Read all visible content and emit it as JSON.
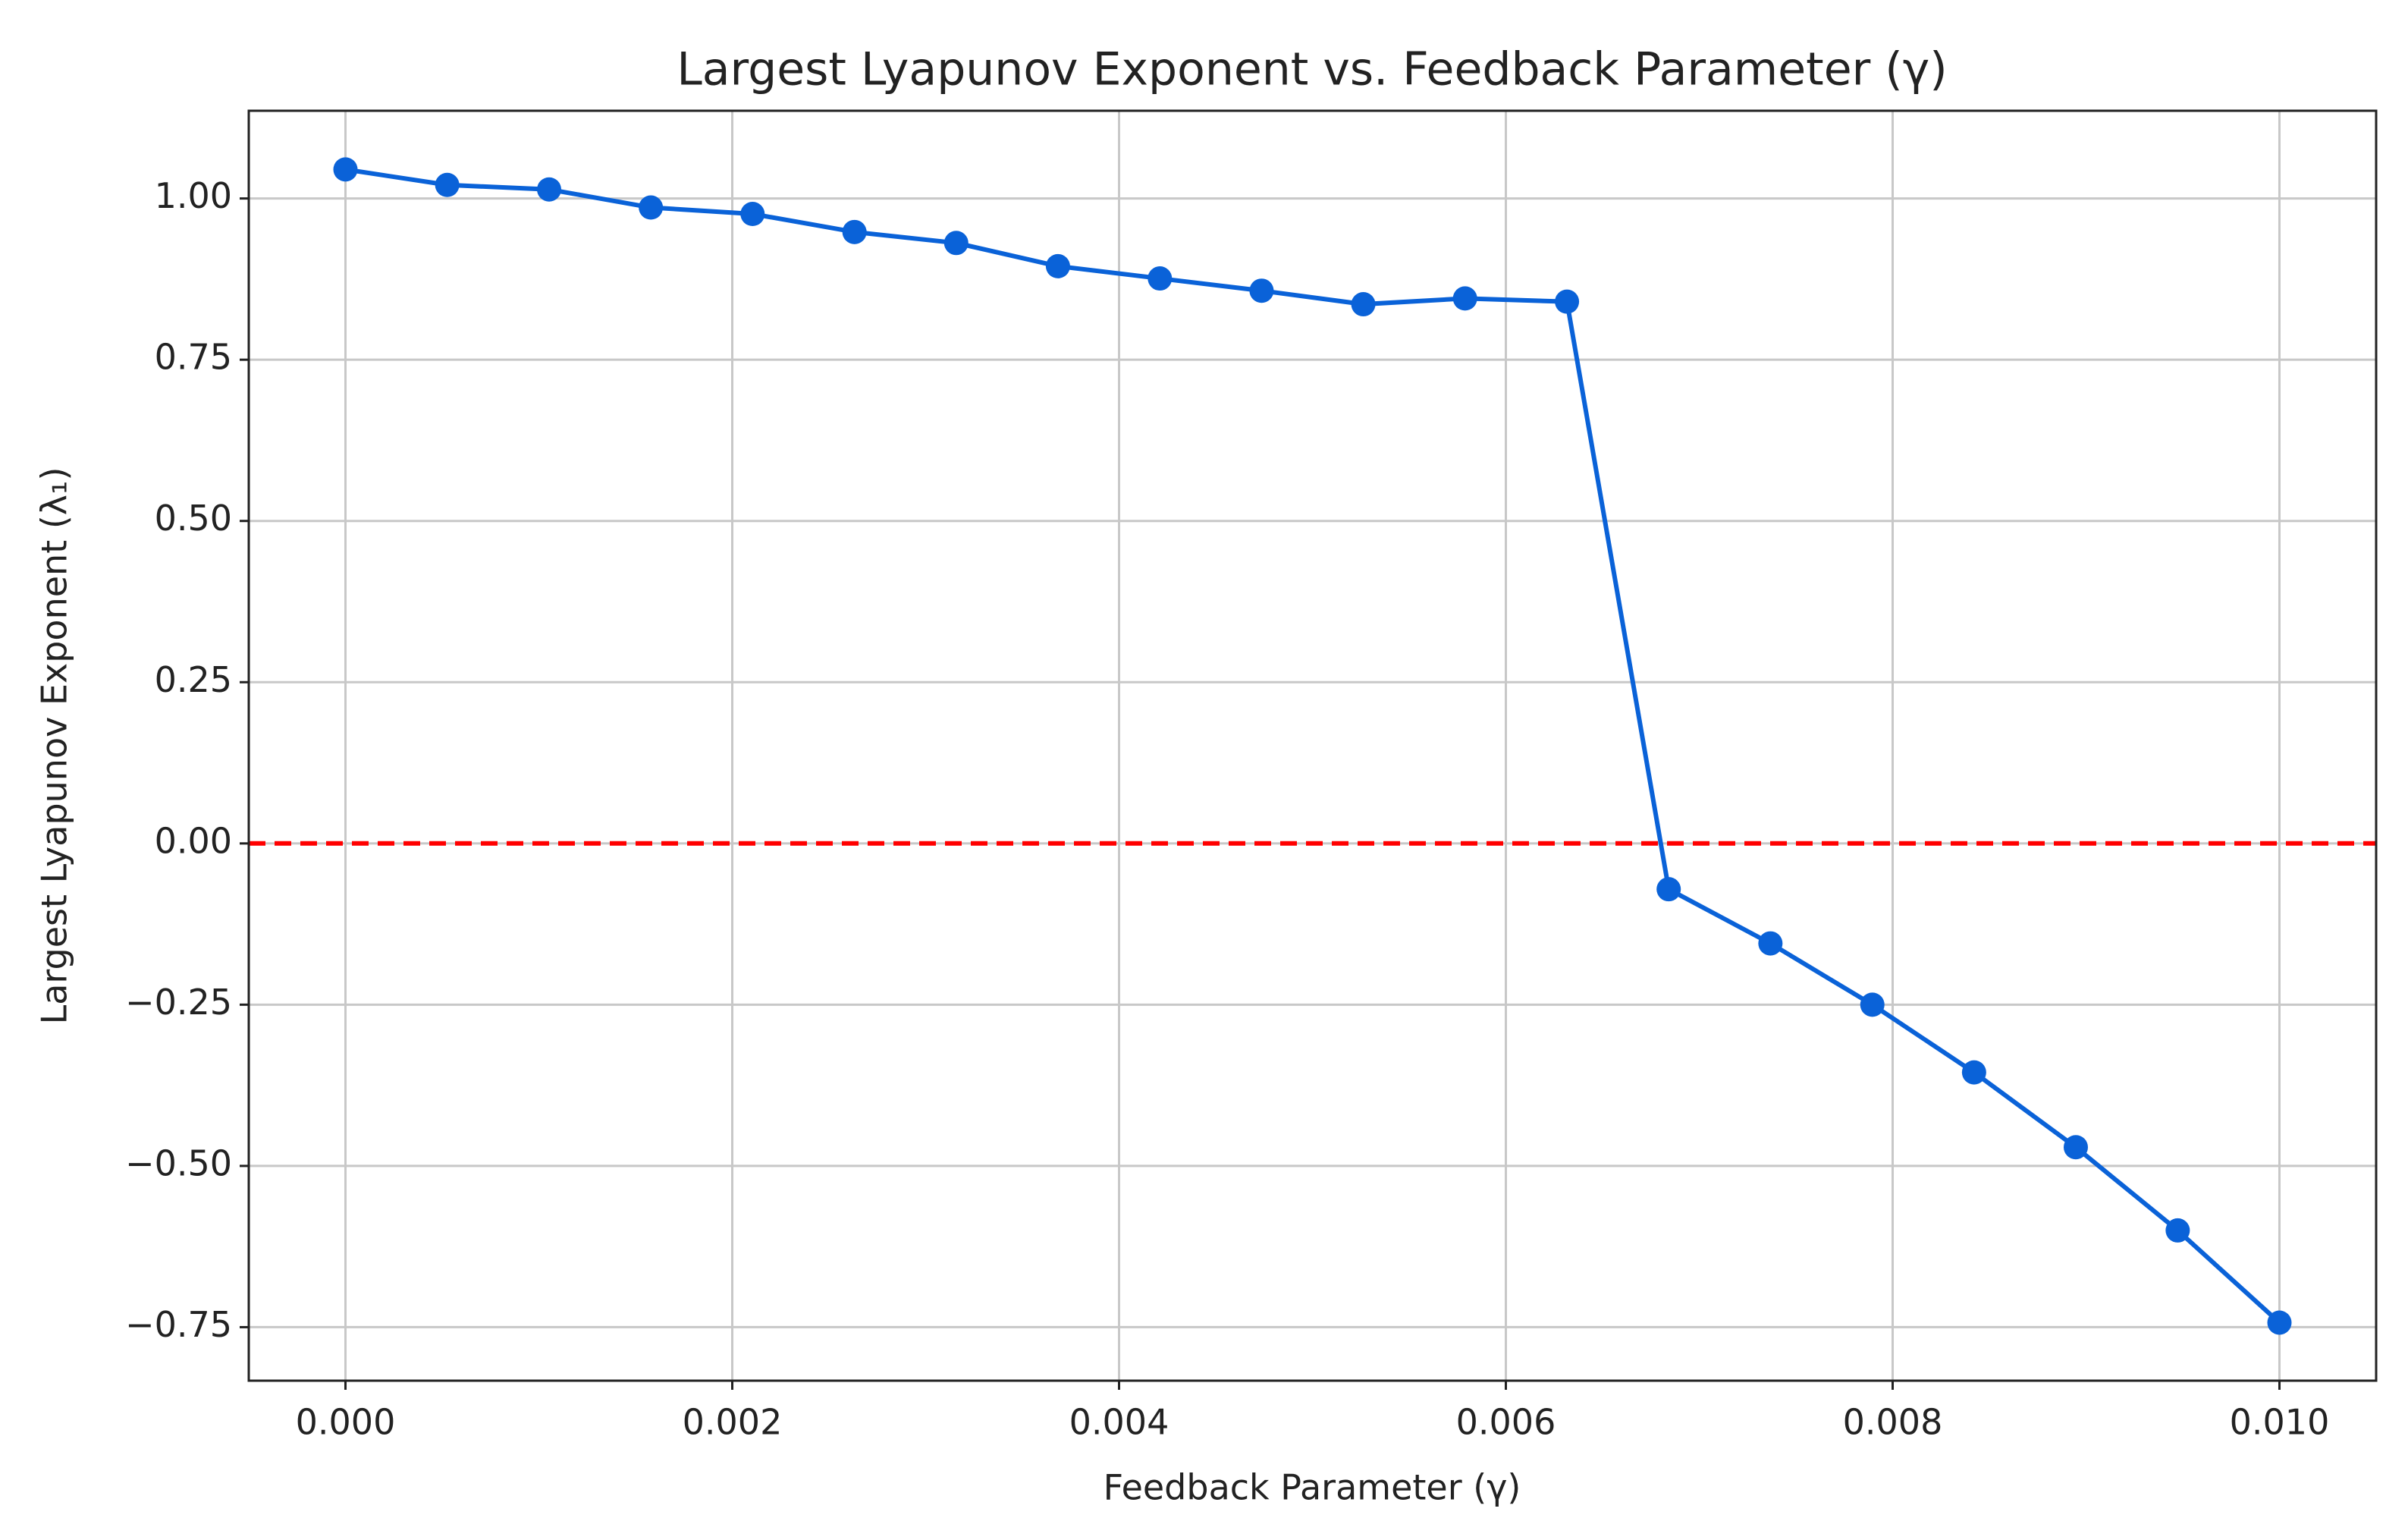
{
  "chart_data": {
    "type": "line",
    "title": "Largest Lyapunov Exponent vs. Feedback Parameter (γ)",
    "xlabel": "Feedback Parameter (γ)",
    "ylabel": "Largest Lyapunov Exponent (λ₁)",
    "x": [
      0,
      0.000526,
      0.001053,
      0.001579,
      0.002105,
      0.002632,
      0.003158,
      0.003684,
      0.004211,
      0.004737,
      0.005263,
      0.005789,
      0.006316,
      0.006842,
      0.007368,
      0.007895,
      0.008421,
      0.008947,
      0.009474,
      0.01
    ],
    "series": [
      {
        "color": "#0a62d8",
        "values": [
          1.045,
          1.021,
          1.014,
          0.986,
          0.976,
          0.948,
          0.931,
          0.895,
          0.876,
          0.857,
          0.836,
          0.845,
          0.84,
          -0.071,
          -0.155,
          -0.25,
          -0.355,
          -0.471,
          -0.6,
          -0.743
        ]
      }
    ],
    "hline": {
      "value": 0,
      "color": "#ff0000",
      "linestyle": "dashed"
    },
    "xlim": [
      -0.0005,
      0.0105
    ],
    "ylim": [
      -0.833,
      1.136
    ],
    "xticks": [
      {
        "value": 0,
        "label": "0.000"
      },
      {
        "value": 0.002,
        "label": "0.002"
      },
      {
        "value": 0.004,
        "label": "0.004"
      },
      {
        "value": 0.006,
        "label": "0.006"
      },
      {
        "value": 0.008,
        "label": "0.008"
      },
      {
        "value": 0.01,
        "label": "0.010"
      }
    ],
    "yticks": [
      {
        "value": -0.75,
        "label": "−0.75"
      },
      {
        "value": -0.5,
        "label": "−0.50"
      },
      {
        "value": -0.25,
        "label": "−0.25"
      },
      {
        "value": 0,
        "label": "0.00"
      },
      {
        "value": 0.25,
        "label": "0.25"
      },
      {
        "value": 0.5,
        "label": "0.50"
      },
      {
        "value": 0.75,
        "label": "0.75"
      },
      {
        "value": 1,
        "label": "1.00"
      }
    ],
    "grid": true
  }
}
